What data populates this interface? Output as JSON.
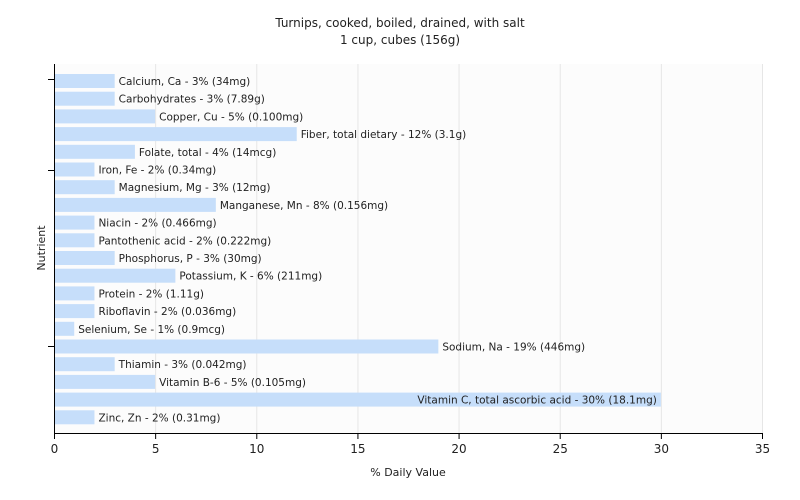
{
  "chart_data": {
    "type": "bar",
    "orientation": "horizontal",
    "title": "Turnips, cooked, boiled, drained, with salt",
    "subtitle": "1 cup, cubes (156g)",
    "xlabel": "% Daily Value",
    "ylabel": "Nutrient",
    "xlim": [
      0,
      35
    ],
    "xticks": [
      0,
      5,
      10,
      15,
      20,
      25,
      30,
      35
    ],
    "grid": true,
    "bar_color": "#c6defa",
    "categories": [
      "Calcium, Ca",
      "Carbohydrates",
      "Copper, Cu",
      "Fiber, total dietary",
      "Folate, total",
      "Iron, Fe",
      "Magnesium, Mg",
      "Manganese, Mn",
      "Niacin",
      "Pantothenic acid",
      "Phosphorus, P",
      "Potassium, K",
      "Protein",
      "Riboflavin",
      "Selenium, Se",
      "Sodium, Na",
      "Thiamin",
      "Vitamin B-6",
      "Vitamin C, total ascorbic acid",
      "Zinc, Zn"
    ],
    "values": [
      3,
      3,
      5,
      12,
      4,
      2,
      3,
      8,
      2,
      2,
      3,
      6,
      2,
      2,
      1,
      19,
      3,
      5,
      30,
      2
    ],
    "labels": [
      "Calcium, Ca - 3% (34mg)",
      "Carbohydrates - 3% (7.89g)",
      "Copper, Cu - 5% (0.100mg)",
      "Fiber, total dietary - 12% (3.1g)",
      "Folate, total - 4% (14mcg)",
      "Iron, Fe - 2% (0.34mg)",
      "Magnesium, Mg - 3% (12mg)",
      "Manganese, Mn - 8% (0.156mg)",
      "Niacin - 2% (0.466mg)",
      "Pantothenic acid - 2% (0.222mg)",
      "Phosphorus, P - 3% (30mg)",
      "Potassium, K - 6% (211mg)",
      "Protein - 2% (1.11g)",
      "Riboflavin - 2% (0.036mg)",
      "Selenium, Se - 1% (0.9mcg)",
      "Sodium, Na - 19% (446mg)",
      "Thiamin - 3% (0.042mg)",
      "Vitamin B-6 - 5% (0.105mg)",
      "Vitamin C, total ascorbic acid - 30% (18.1mg)",
      "Zinc, Zn - 2% (0.31mg)"
    ]
  }
}
